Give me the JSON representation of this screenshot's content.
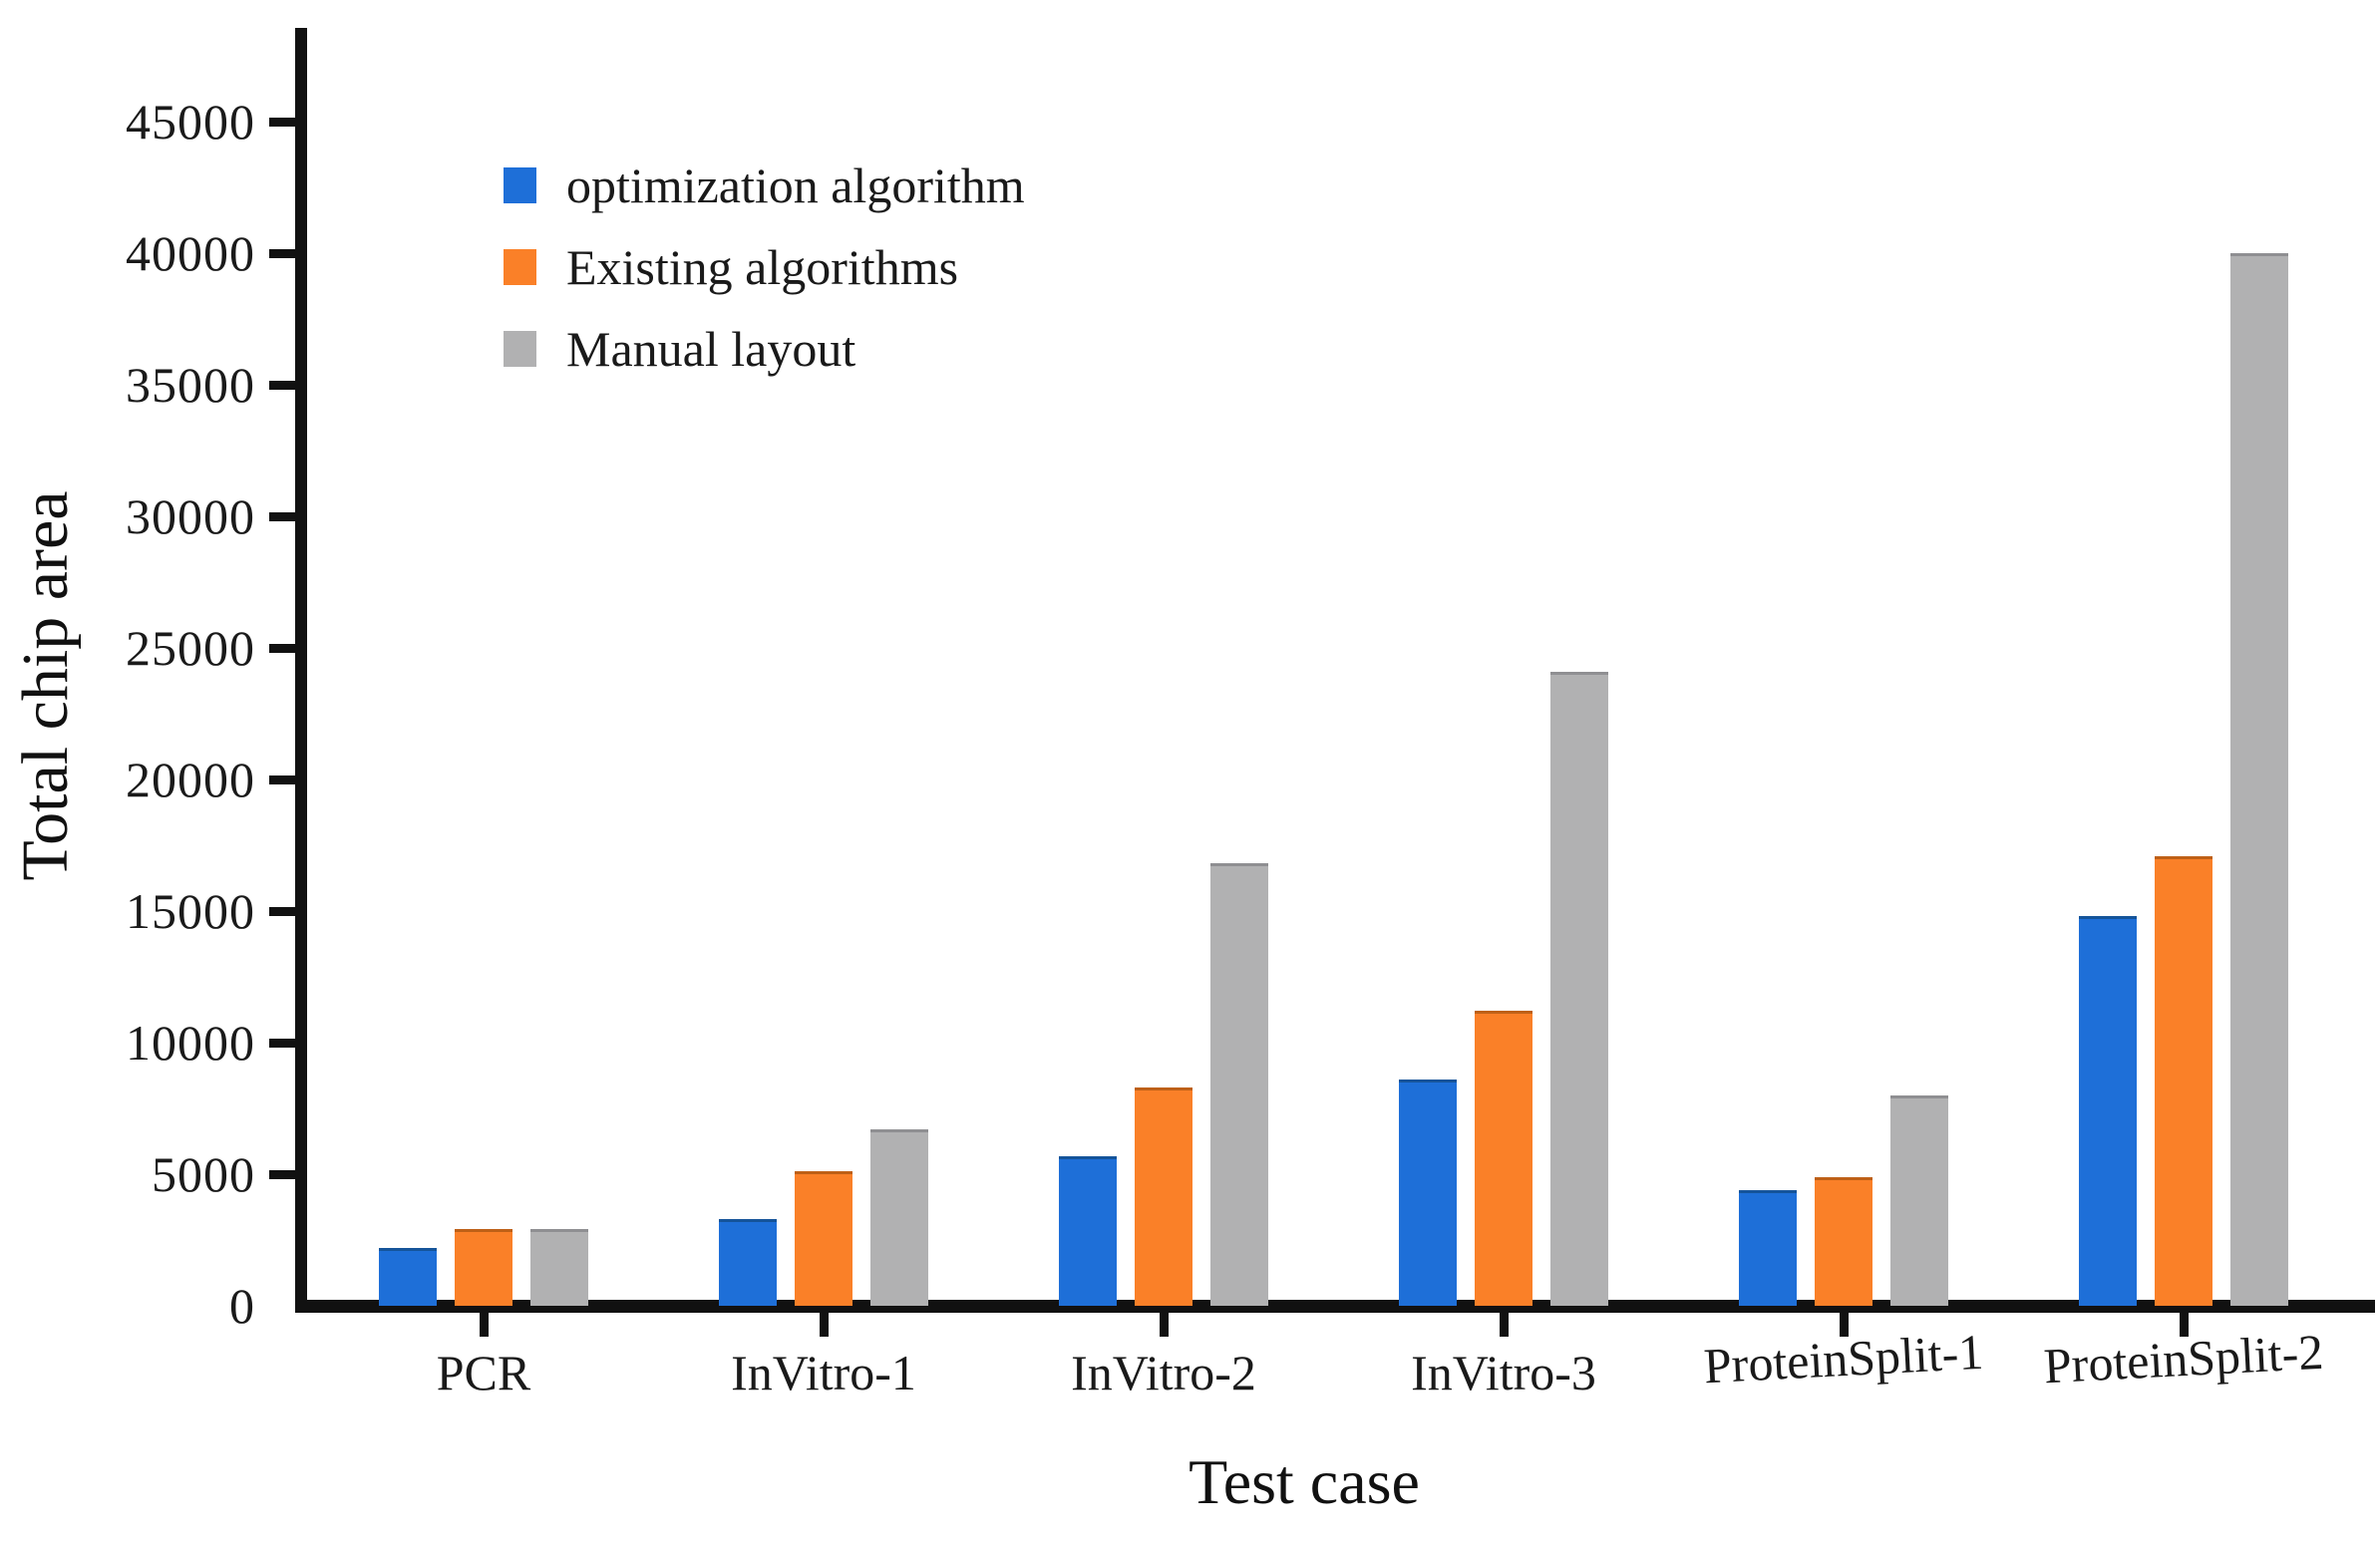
{
  "chart_data": {
    "type": "bar",
    "title": "",
    "xlabel": "Test case",
    "ylabel": "Total chip area",
    "categories": [
      "PCR",
      "InVitro-1",
      "InVitro-2",
      "InVitro-3",
      "ProteinSplit-1",
      "ProteinSplit-2"
    ],
    "series": [
      {
        "name": "optimization algorithm",
        "color": "#1E6FD8",
        "edge_color": "#14508F",
        "values": [
          2200,
          3300,
          5700,
          8600,
          4400,
          14800
        ]
      },
      {
        "name": "Existing algorithms",
        "color": "#FA8028",
        "edge_color": "#B35A14",
        "values": [
          2900,
          5100,
          8300,
          11200,
          4900,
          17100
        ]
      },
      {
        "name": "Manual layout",
        "color": "#B1B1B2",
        "edge_color": "#8A8A8C",
        "values": [
          2900,
          6700,
          16800,
          24100,
          8000,
          40000
        ]
      }
    ],
    "ylim": [
      0,
      47500
    ],
    "ytick_labels": [
      "0",
      "5000",
      "10000",
      "15000",
      "20000",
      "25000",
      "30000",
      "35000",
      "40000",
      "45000"
    ],
    "ytick_step": 5000,
    "legend_position": "upper-left-inside",
    "grid": false,
    "axis_color": "#111111",
    "background_color": "#ffffff"
  }
}
